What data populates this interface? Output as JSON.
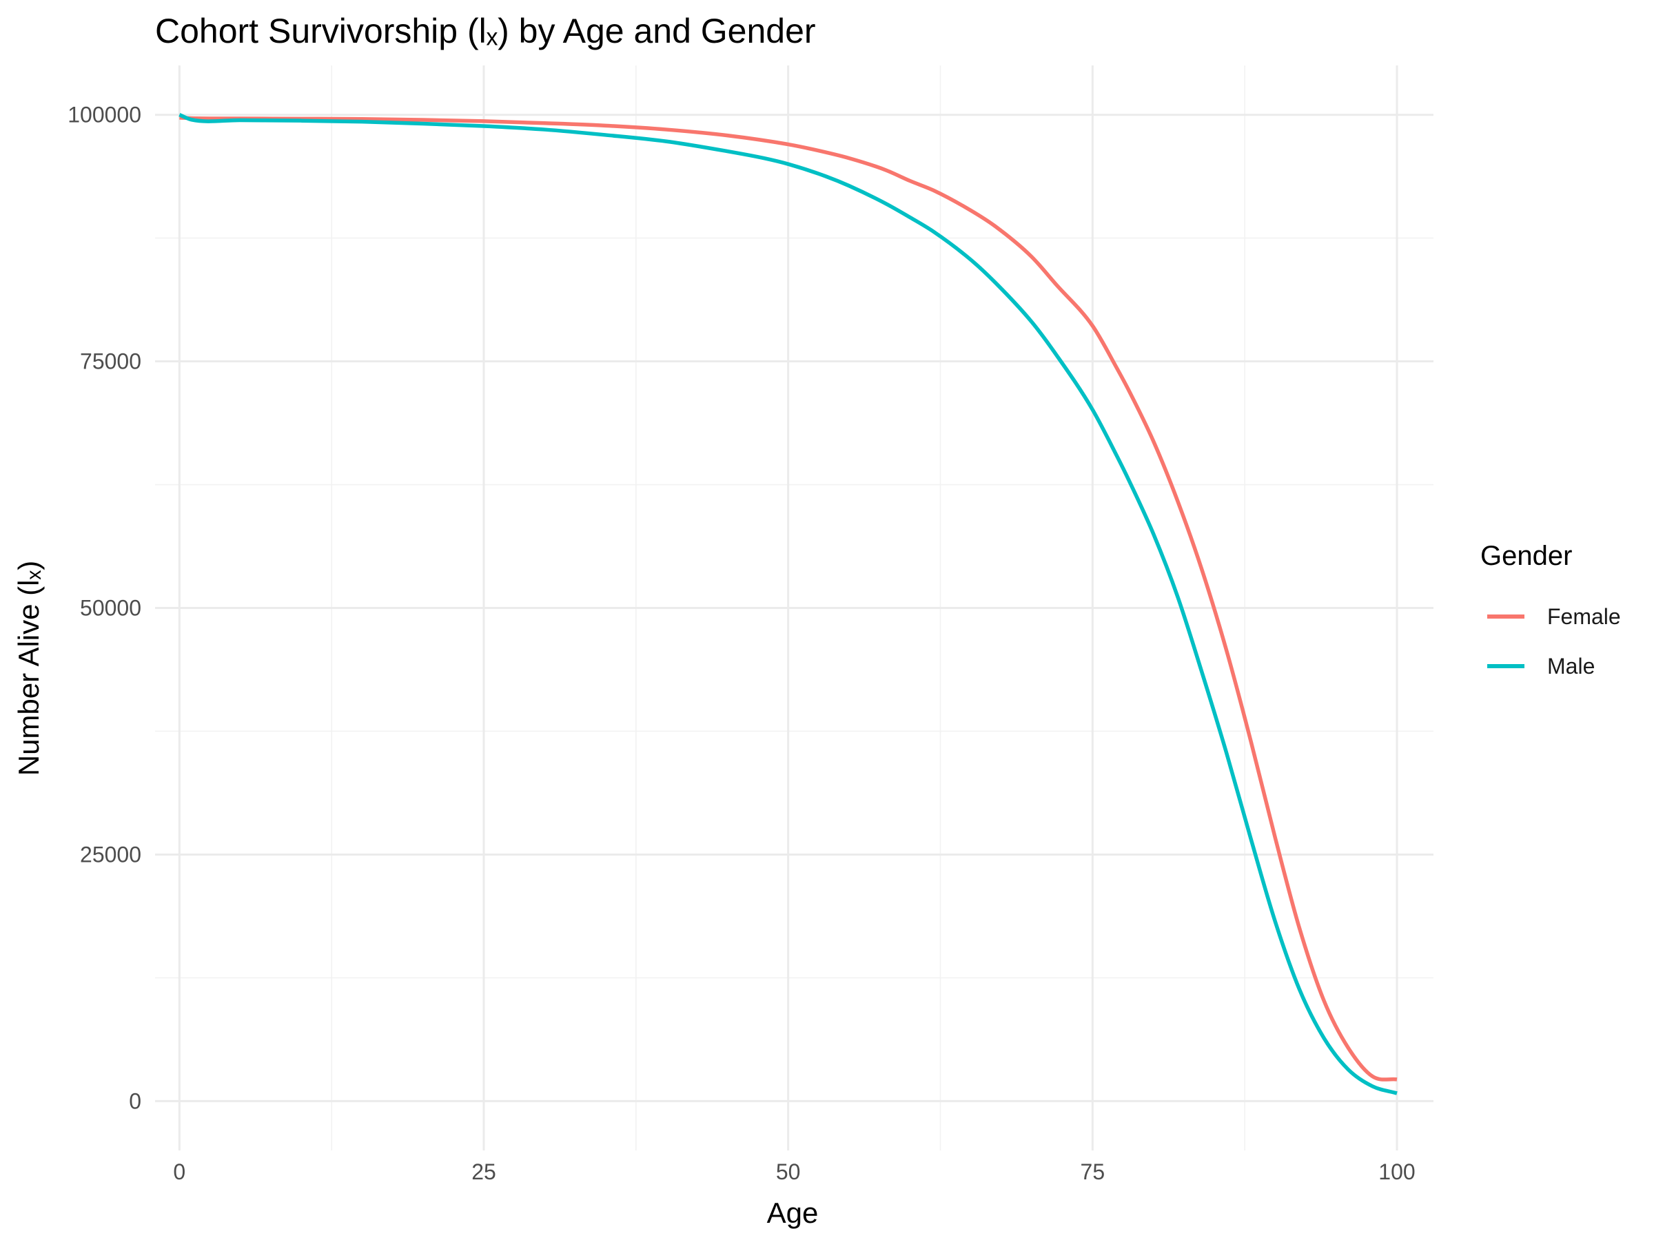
{
  "chart_data": {
    "type": "line",
    "title": "Cohort Survivorship (lₓ) by Age and Gender",
    "xlabel": "Age",
    "ylabel": "Number Alive (lₓ)",
    "xlim": [
      -2,
      103
    ],
    "ylim": [
      -5000,
      105000
    ],
    "x_ticks": [
      0,
      25,
      50,
      75,
      100
    ],
    "y_ticks": [
      0,
      25000,
      50000,
      75000,
      100000
    ],
    "x_tick_labels": [
      "0",
      "25",
      "50",
      "75",
      "100"
    ],
    "y_tick_labels": [
      "0",
      "25000",
      "50000",
      "75000",
      "100000"
    ],
    "grid": true,
    "legend": {
      "title": "Gender",
      "position": "right"
    },
    "series": [
      {
        "name": "Female",
        "color": "#F8766D",
        "x": [
          0,
          1,
          5,
          10,
          15,
          20,
          25,
          30,
          35,
          40,
          45,
          50,
          52,
          55,
          58,
          60,
          62,
          65,
          67,
          70,
          72,
          75,
          77,
          78,
          80,
          82,
          84,
          86,
          88,
          90,
          92,
          94,
          96,
          98,
          100
        ],
        "y": [
          99700,
          99650,
          99620,
          99600,
          99570,
          99480,
          99350,
          99150,
          98900,
          98500,
          97900,
          97000,
          96500,
          95600,
          94400,
          93300,
          92300,
          90300,
          88700,
          85600,
          82800,
          78600,
          74300,
          72000,
          66900,
          60800,
          53800,
          45700,
          36500,
          26700,
          17500,
          10200,
          5400,
          2500,
          2200
        ]
      },
      {
        "name": "Male",
        "color": "#00BFC4",
        "x": [
          0,
          1,
          5,
          10,
          15,
          20,
          25,
          30,
          35,
          40,
          45,
          48,
          50,
          53,
          55,
          58,
          60,
          62,
          65,
          67,
          70,
          72,
          75,
          77,
          78,
          80,
          82,
          84,
          86,
          88,
          90,
          92,
          94,
          96,
          98,
          100
        ],
        "y": [
          100000,
          99500,
          99450,
          99400,
          99300,
          99100,
          98850,
          98500,
          97950,
          97300,
          96300,
          95600,
          95000,
          93800,
          92800,
          91000,
          89600,
          88100,
          85300,
          83000,
          79000,
          75700,
          70100,
          65400,
          62900,
          57500,
          51100,
          43400,
          35300,
          26600,
          18200,
          11300,
          6400,
          3200,
          1500,
          800
        ]
      }
    ]
  }
}
